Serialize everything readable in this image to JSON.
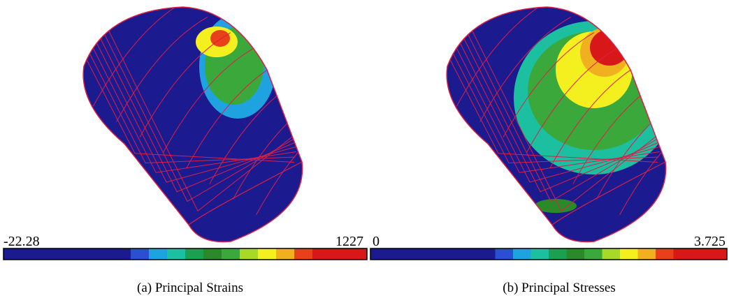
{
  "panels": [
    {
      "colorbar": {
        "min_label": "-22.28",
        "max_label": "1227"
      },
      "caption": "(a) Principal Strains"
    },
    {
      "colorbar": {
        "min_label": "0",
        "max_label": "3.725"
      },
      "caption": "(b) Principal Stresses"
    }
  ],
  "colorbar_colors": [
    "#1b1a8f",
    "#1b1a8f",
    "#1b1a8f",
    "#1b1a8f",
    "#1b1a8f",
    "#1b1a8f",
    "#1b1a8f",
    "#2a4fd0",
    "#1fa3e0",
    "#1cc0a0",
    "#1aa050",
    "#2a8a2a",
    "#3aa83a",
    "#a8d828",
    "#f4f020",
    "#f0b020",
    "#e84018",
    "#d81818",
    "#d81818",
    "#d81818"
  ],
  "mesh_color": "#d8204a"
}
